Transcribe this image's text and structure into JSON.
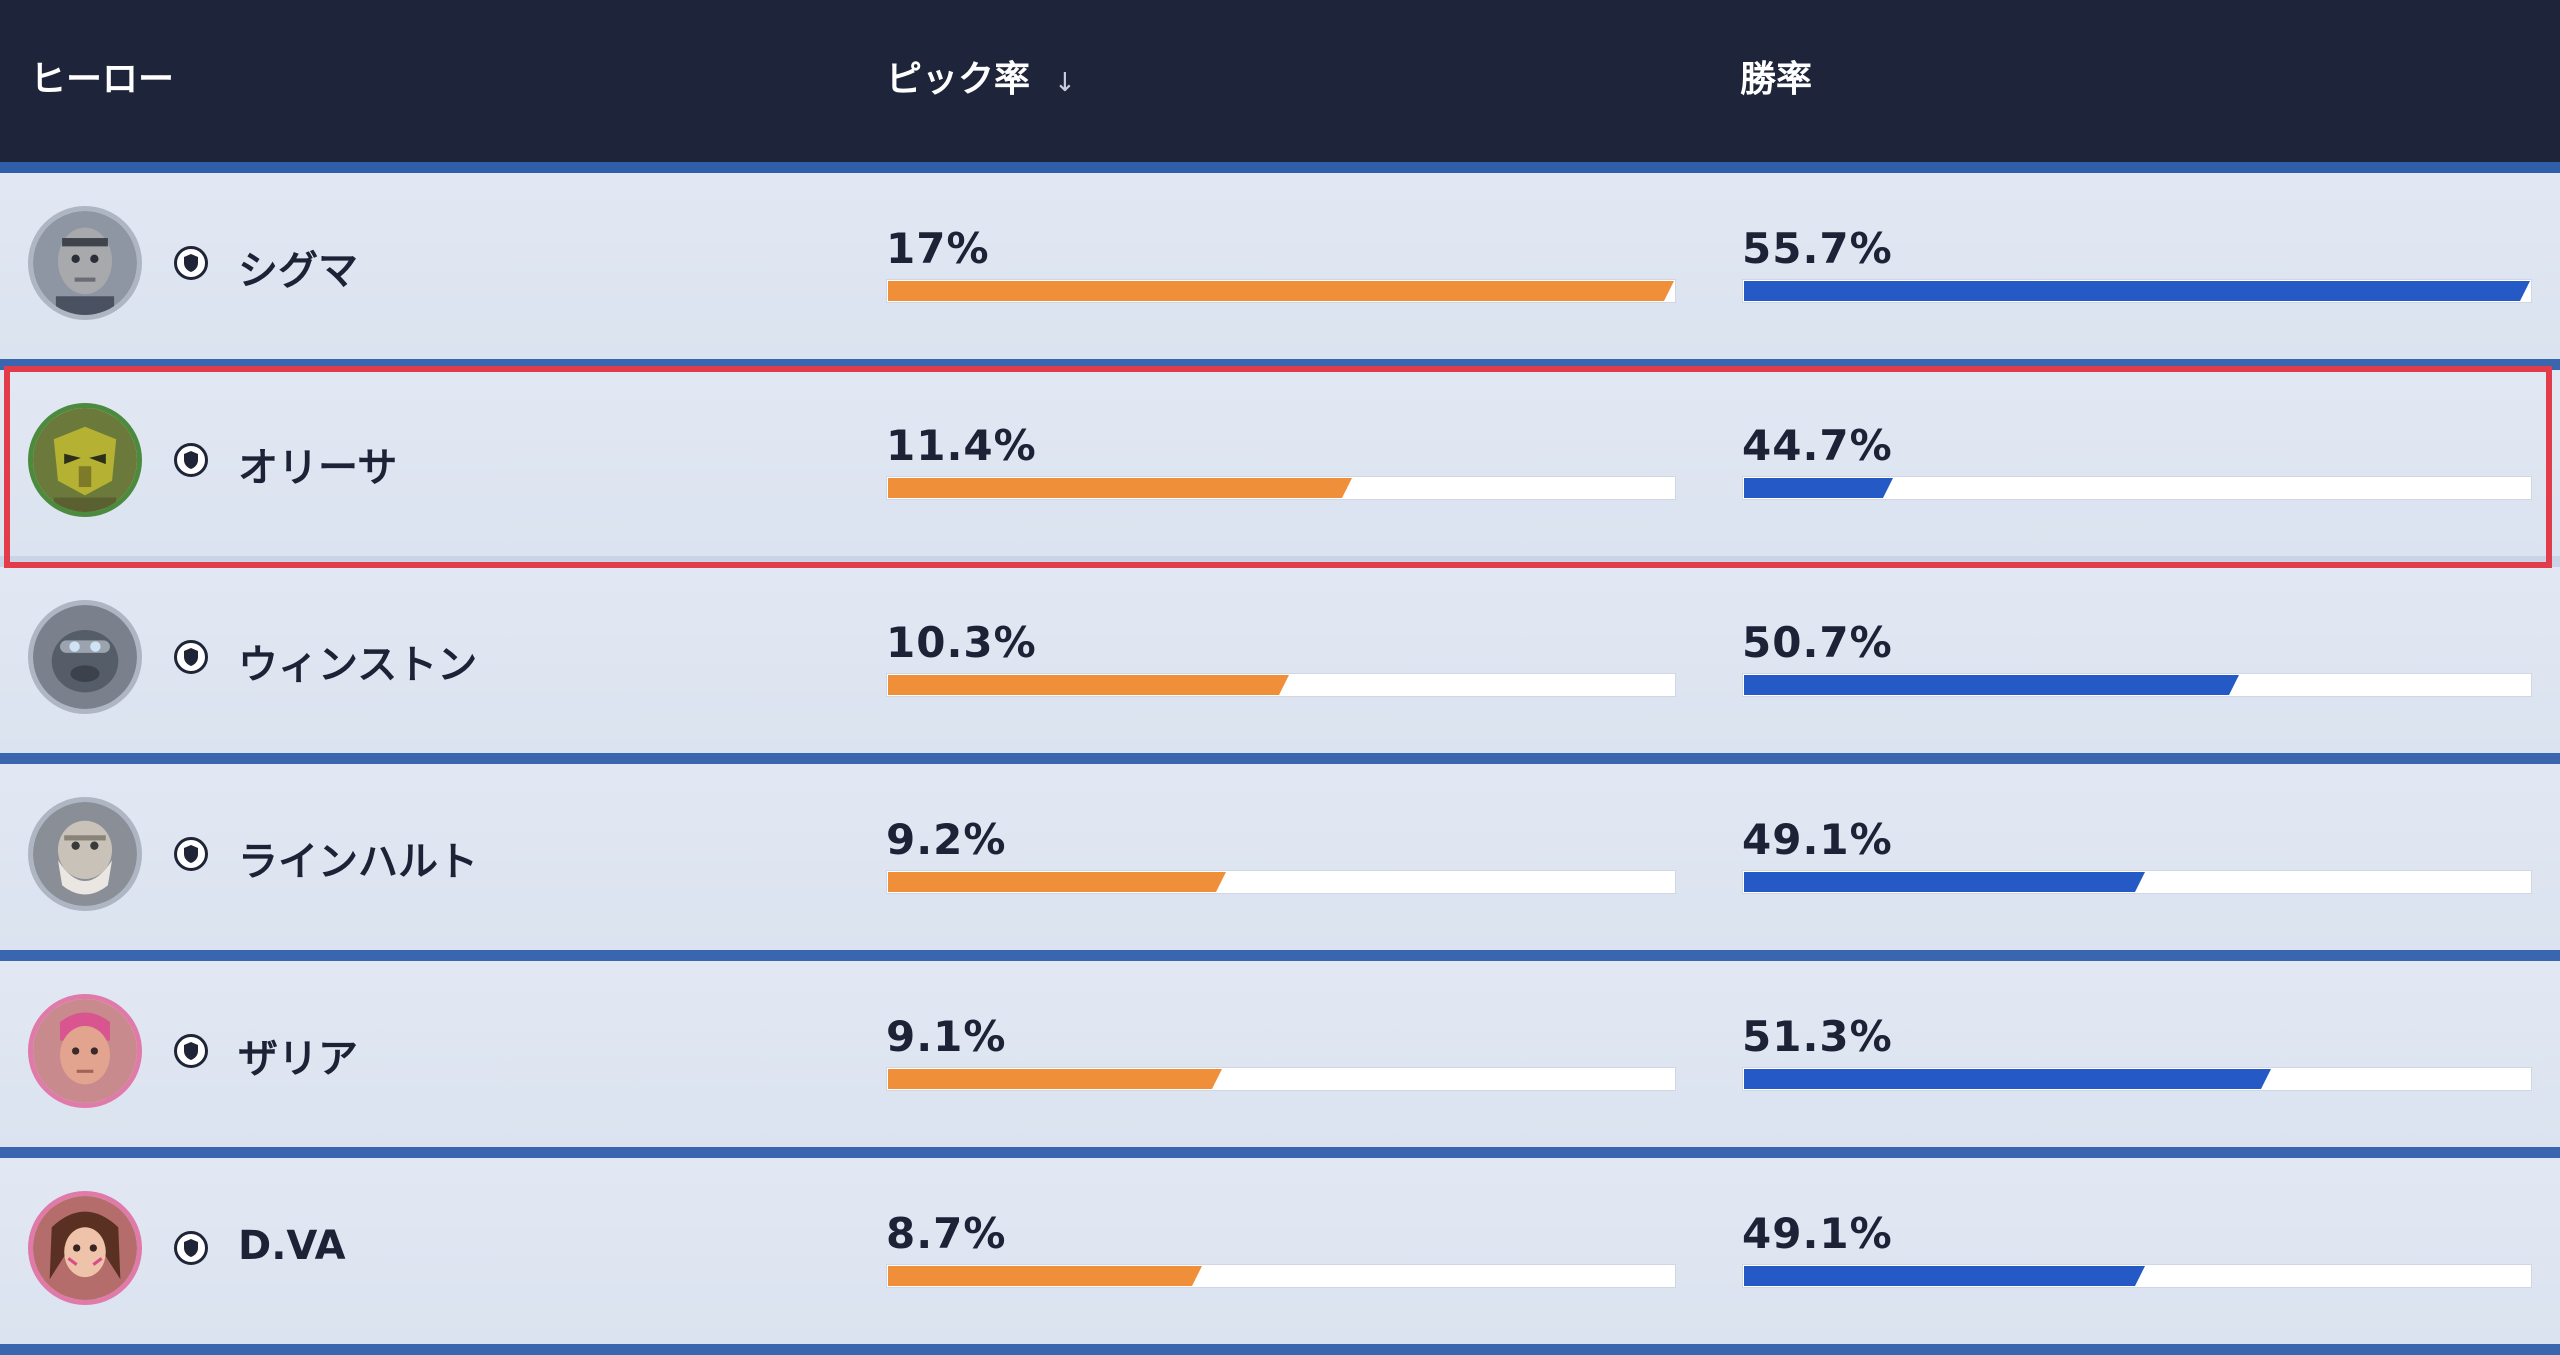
{
  "header": {
    "hero_label": "ヒーロー",
    "pick_label": "ピック率",
    "pick_sort_icon": "sort-down-icon",
    "win_label": "勝率"
  },
  "colors": {
    "header_bg": "#1e2439",
    "pick_bar": "#ef8f3a",
    "win_bar": "#2459c6",
    "highlight": "#e23c4a"
  },
  "rows": [
    {
      "name": "シグマ",
      "role_icon": "tank-role-icon",
      "pick": "17%",
      "pick_value": 1.0,
      "win": "55.7%",
      "win_value": 1.0,
      "avatar_color": "#a7a9ad",
      "ring": "#aeb6c4"
    },
    {
      "name": "オリーサ",
      "role_icon": "tank-role-icon",
      "pick": "11.4%",
      "pick_value": 0.59,
      "win": "44.7%",
      "win_value": 0.19,
      "avatar_color": "#b5b133",
      "ring": "#4c8a3e",
      "highlighted": true
    },
    {
      "name": "ウィンストン",
      "role_icon": "tank-role-icon",
      "pick": "10.3%",
      "pick_value": 0.51,
      "win": "50.7%",
      "win_value": 0.63,
      "avatar_color": "#555d68",
      "ring": "#aeb6c4"
    },
    {
      "name": "ラインハルト",
      "role_icon": "tank-role-icon",
      "pick": "9.2%",
      "pick_value": 0.43,
      "win": "49.1%",
      "win_value": 0.51,
      "avatar_color": "#c9c2b8",
      "ring": "#aeb6c4"
    },
    {
      "name": "ザリア",
      "role_icon": "tank-role-icon",
      "pick": "9.1%",
      "pick_value": 0.425,
      "win": "51.3%",
      "win_value": 0.67,
      "avatar_color": "#e3a48f",
      "ring": "#e07aa9"
    },
    {
      "name": "D.VA",
      "role_icon": "tank-role-icon",
      "pick": "8.7%",
      "pick_value": 0.4,
      "win": "49.1%",
      "win_value": 0.51,
      "avatar_color": "#8d5544",
      "ring": "#e07aa9"
    }
  ]
}
